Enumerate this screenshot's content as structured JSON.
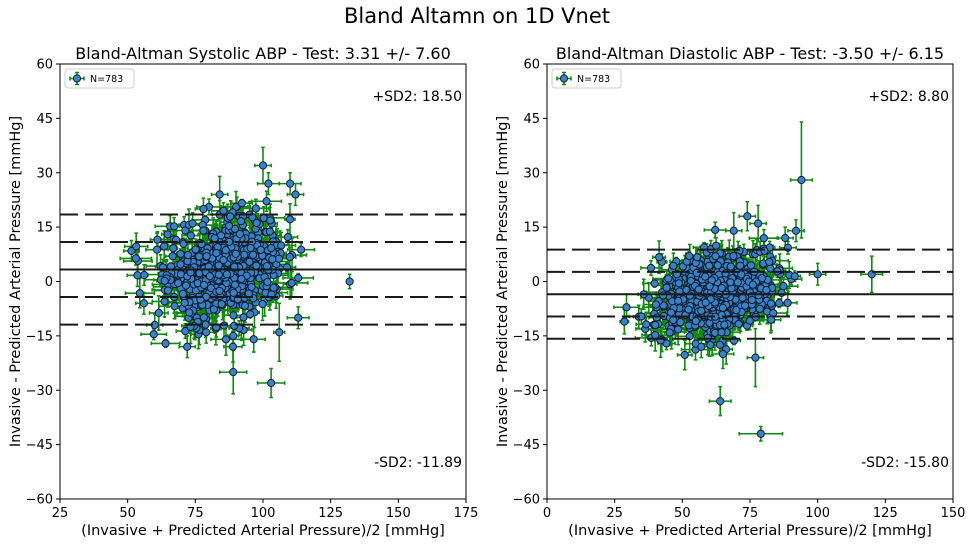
{
  "figure_title": "Bland Altamn on 1D Vnet",
  "colors": {
    "point_fill": "#3b82c4",
    "point_edge": "#0b1c33",
    "errorbar": "#118a11",
    "reference_line": "#1a1a1a"
  },
  "chart_data": [
    {
      "type": "scatter",
      "title": "Bland-Altman Systolic ABP - Test: 3.31 +/- 7.60",
      "xlabel": "(Invasive + Predicted Arterial Pressure)/2 [mmHg]",
      "ylabel": "Invasive - Predicted Arterial Pressure [mmHg]",
      "xlim": [
        25,
        175
      ],
      "ylim": [
        -60,
        60
      ],
      "xticks": [
        25,
        50,
        75,
        100,
        125,
        150,
        175
      ],
      "yticks": [
        -60,
        -45,
        -30,
        -15,
        0,
        15,
        30,
        45,
        60
      ],
      "legend": {
        "label": "N=783",
        "placement": "top-left"
      },
      "n_points": 783,
      "mean_difference": 3.31,
      "sd": 7.6,
      "upper_sd2": 18.5,
      "lower_sd2": -11.89,
      "inner_dashed_lines": [
        10.9,
        -4.29
      ],
      "annotation_upper": "+SD2: 18.50",
      "annotation_lower": "-SD2: -11.89",
      "cluster": {
        "x_center": 86,
        "x_sd": 11,
        "y_center": 3.5,
        "y_sd": 6.5,
        "x_err_typical": 4,
        "y_err_typical": 3
      },
      "notable_points": [
        {
          "x": 100,
          "y": 32,
          "xerr": 3,
          "yerr": 5
        },
        {
          "x": 84,
          "y": 24,
          "xerr": 3,
          "yerr": 5
        },
        {
          "x": 110,
          "y": 27,
          "xerr": 4,
          "yerr": 3
        },
        {
          "x": 112,
          "y": 24,
          "xerr": 3,
          "yerr": 3
        },
        {
          "x": 102,
          "y": 27,
          "xerr": 4,
          "yerr": 3
        },
        {
          "x": 132,
          "y": 0,
          "xerr": 1,
          "yerr": 2
        },
        {
          "x": 89,
          "y": -25,
          "xerr": 5,
          "yerr": 6
        },
        {
          "x": 103,
          "y": -28,
          "xerr": 5,
          "yerr": 4
        },
        {
          "x": 106,
          "y": -14,
          "xerr": 2,
          "yerr": 8
        },
        {
          "x": 89,
          "y": -15,
          "xerr": 2,
          "yerr": 2
        },
        {
          "x": 72,
          "y": -18,
          "xerr": 3,
          "yerr": 3
        },
        {
          "x": 79,
          "y": -14,
          "xerr": 3,
          "yerr": 3
        },
        {
          "x": 113,
          "y": -10,
          "xerr": 4,
          "yerr": 3
        },
        {
          "x": 60,
          "y": -12,
          "xerr": 3,
          "yerr": 3
        },
        {
          "x": 56,
          "y": -6,
          "xerr": 3,
          "yerr": 3
        },
        {
          "x": 78,
          "y": 20,
          "xerr": 3,
          "yerr": 3
        },
        {
          "x": 74,
          "y": 16,
          "xerr": 4,
          "yerr": 3
        }
      ]
    },
    {
      "type": "scatter",
      "title": "Bland-Altman Diastolic ABP - Test: -3.50 +/- 6.15",
      "xlabel": "(Invasive + Predicted Arterial Pressure)/2 [mmHg]",
      "ylabel": "Invasive - Predicted Arterial Pressure [mmHg]",
      "xlim": [
        0,
        150
      ],
      "ylim": [
        -60,
        60
      ],
      "xticks": [
        0,
        25,
        50,
        75,
        100,
        125,
        150
      ],
      "yticks": [
        -60,
        -45,
        -30,
        -15,
        0,
        15,
        30,
        45,
        60
      ],
      "legend": {
        "label": "N=783",
        "placement": "top-left"
      },
      "n_points": 783,
      "mean_difference": -3.5,
      "sd": 6.15,
      "upper_sd2": 8.8,
      "lower_sd2": -15.8,
      "inner_dashed_lines": [
        2.65,
        -9.65
      ],
      "annotation_upper": "+SD2: 8.80",
      "annotation_lower": "-SD2: -15.80",
      "cluster": {
        "x_center": 63,
        "x_sd": 10,
        "y_center": -3.5,
        "y_sd": 5.5,
        "x_err_typical": 4,
        "y_err_typical": 3
      },
      "notable_points": [
        {
          "x": 94,
          "y": 28,
          "xerr": 4,
          "yerr": 16
        },
        {
          "x": 78,
          "y": 16,
          "xerr": 3,
          "yerr": 5
        },
        {
          "x": 79,
          "y": -42,
          "xerr": 8,
          "yerr": 2
        },
        {
          "x": 64,
          "y": -33,
          "xerr": 4,
          "yerr": 4
        },
        {
          "x": 77,
          "y": -21,
          "xerr": 3,
          "yerr": 8
        },
        {
          "x": 65,
          "y": -20,
          "xerr": 4,
          "yerr": 4
        },
        {
          "x": 57,
          "y": -18,
          "xerr": 3,
          "yerr": 3
        },
        {
          "x": 120,
          "y": 2,
          "xerr": 4,
          "yerr": 5
        },
        {
          "x": 88,
          "y": 12,
          "xerr": 3,
          "yerr": 3
        },
        {
          "x": 92,
          "y": 14,
          "xerr": 3,
          "yerr": 3
        },
        {
          "x": 69,
          "y": 14,
          "xerr": 3,
          "yerr": 5
        },
        {
          "x": 74,
          "y": 18,
          "xerr": 3,
          "yerr": 4
        },
        {
          "x": 40,
          "y": -12,
          "xerr": 3,
          "yerr": 3
        },
        {
          "x": 48,
          "y": 2,
          "xerr": 3,
          "yerr": 3
        },
        {
          "x": 100,
          "y": 2,
          "xerr": 3,
          "yerr": 3
        }
      ]
    }
  ]
}
